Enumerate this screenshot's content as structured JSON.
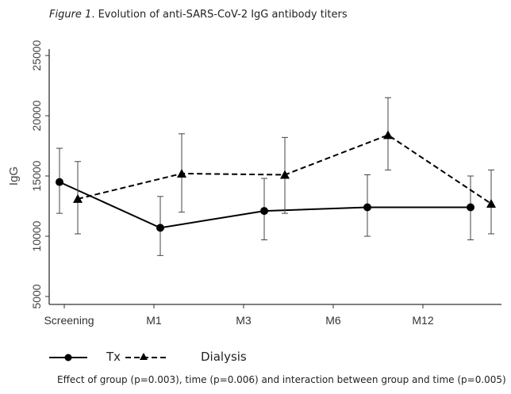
{
  "figure": {
    "title_prefix": "Figure 1",
    "title_rest": ". Evolution of anti-SARS-CoV-2 IgG antibody titers",
    "footnote": "Effect of group (p=0.003), time (p=0.006) and interaction between group and time (p=0.005)"
  },
  "chart_data": {
    "type": "line",
    "title": "Figure 1. Evolution of anti-SARS-CoV-2 IgG antibody titers",
    "xlabel": "",
    "ylabel": "IgG",
    "categories": [
      "Screening",
      "M1",
      "M3",
      "M6",
      "M12"
    ],
    "ylim": [
      4500,
      26500
    ],
    "yticks": [
      5000,
      10000,
      15000,
      20000,
      25000
    ],
    "ytick_labels": [
      "5000",
      "10000",
      "15000",
      "20000",
      "25000"
    ],
    "grid": false,
    "legend_position": "bottom",
    "series": [
      {
        "name": "Tx",
        "line_style": "solid",
        "marker": "circle",
        "values": [
          14500,
          10700,
          12100,
          12400,
          12400
        ],
        "error_upper": [
          17300,
          13300,
          14800,
          15100,
          15000
        ],
        "error_lower": [
          11900,
          8400,
          9700,
          10000,
          9700
        ]
      },
      {
        "name": "Dialysis",
        "line_style": "dashed",
        "marker": "triangle",
        "values": [
          13100,
          15200,
          15100,
          18400,
          12700
        ],
        "error_upper": [
          16200,
          18500,
          18200,
          21500,
          15500
        ],
        "error_lower": [
          10200,
          12000,
          11900,
          15500,
          10200
        ]
      }
    ]
  }
}
